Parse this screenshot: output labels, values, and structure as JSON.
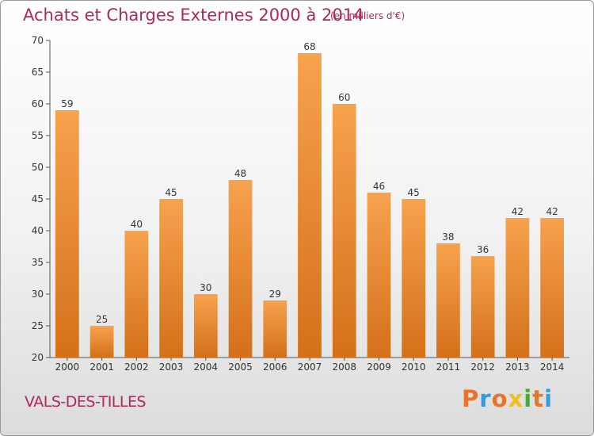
{
  "chart_data": {
    "type": "bar",
    "title": "Achats et Charges Externes 2000 à 2014",
    "subtitle": "(en milliers d'€)",
    "categories": [
      "2000",
      "2001",
      "2002",
      "2003",
      "2004",
      "2005",
      "2006",
      "2007",
      "2008",
      "2009",
      "2010",
      "2011",
      "2012",
      "2013",
      "2014"
    ],
    "values": [
      59,
      25,
      40,
      45,
      30,
      48,
      29,
      68,
      60,
      46,
      45,
      38,
      36,
      42,
      42
    ],
    "ylim": [
      20,
      70
    ],
    "yticks": [
      20,
      25,
      30,
      35,
      40,
      45,
      50,
      55,
      60,
      65,
      70
    ],
    "grid": false,
    "bar_color": "#f0913a",
    "bar_color_dark": "#d4701a"
  },
  "footer": {
    "place": "VALS-DES-TILLES",
    "logo": [
      "P",
      "r",
      "o",
      "x",
      "i",
      "t",
      "i"
    ],
    "logo_colors": [
      "#e8732a",
      "#3a9ad9",
      "#e8732a",
      "#f2c01e",
      "#4aa83a",
      "#e8732a",
      "#3a9ad9"
    ]
  }
}
